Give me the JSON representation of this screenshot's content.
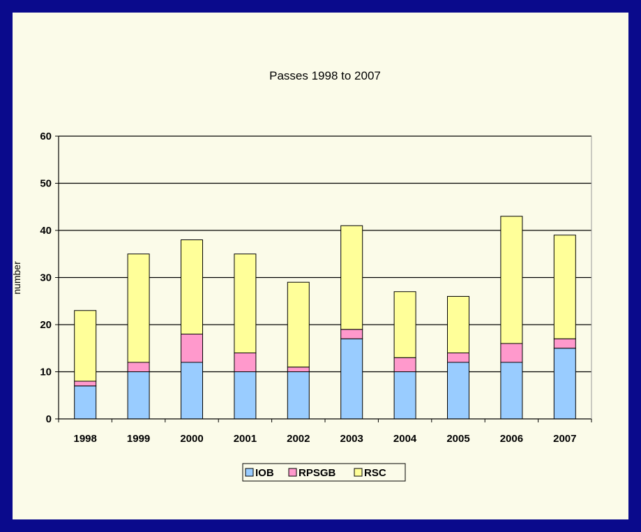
{
  "chart_data": {
    "type": "bar",
    "stacked": true,
    "title": "Passes 1998 to 2007",
    "xlabel": "",
    "ylabel": "number",
    "ylim": [
      0,
      60
    ],
    "yticks": [
      0,
      10,
      20,
      30,
      40,
      50,
      60
    ],
    "grid": true,
    "legend_position": "bottom",
    "categories": [
      "1998",
      "1999",
      "2000",
      "2001",
      "2002",
      "2003",
      "2004",
      "2005",
      "2006",
      "2007"
    ],
    "series": [
      {
        "name": "IOB",
        "color": "#99ccff",
        "values": [
          7,
          10,
          12,
          10,
          10,
          17,
          10,
          12,
          12,
          15
        ]
      },
      {
        "name": "RPSGB",
        "color": "#ff99cc",
        "values": [
          1,
          2,
          6,
          4,
          1,
          2,
          3,
          2,
          4,
          2
        ]
      },
      {
        "name": "RSC",
        "color": "#ffff99",
        "values": [
          15,
          23,
          20,
          21,
          18,
          22,
          14,
          12,
          27,
          22
        ]
      }
    ]
  }
}
